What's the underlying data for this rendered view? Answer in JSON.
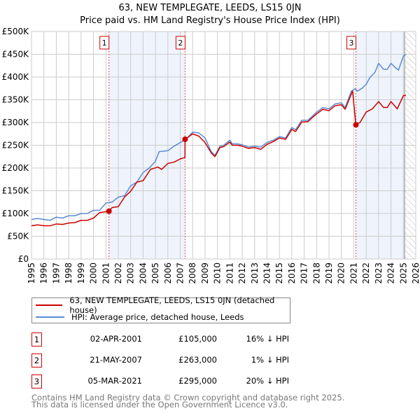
{
  "title": "63, NEW TEMPLEGATE, LEEDS, LS15 0JN",
  "subtitle": "Price paid vs. HM Land Registry's House Price Index (HPI)",
  "legend": {
    "property": "63, NEW TEMPLEGATE, LEEDS, LS15 0JN (detached house)",
    "hpi": "HPI: Average price, detached house, Leeds"
  },
  "colors": {
    "property": "#cc0000",
    "hpi": "#5b8bd0",
    "shade": "#eef3fc"
  },
  "transactions": [
    {
      "n": "1",
      "date": "02-APR-2001",
      "price": "£105,000",
      "hpi": "16% ↓ HPI"
    },
    {
      "n": "2",
      "date": "21-MAY-2007",
      "price": "£263,000",
      "hpi": "1% ↓ HPI"
    },
    {
      "n": "3",
      "date": "05-MAR-2021",
      "price": "£295,000",
      "hpi": "20% ↓ HPI"
    }
  ],
  "footer": [
    "Contains HM Land Registry data © Crown copyright and database right 2025.",
    "This data is licensed under the Open Government Licence v3.0."
  ],
  "chart_data": {
    "type": "line",
    "xlim": [
      1995,
      2026
    ],
    "ylim": [
      0,
      500000
    ],
    "xticks": [
      "1995",
      "1996",
      "1997",
      "1998",
      "1999",
      "2000",
      "2001",
      "2002",
      "2003",
      "2004",
      "2005",
      "2006",
      "2007",
      "2008",
      "2009",
      "2010",
      "2011",
      "2012",
      "2013",
      "2014",
      "2015",
      "2016",
      "2017",
      "2018",
      "2019",
      "2020",
      "2021",
      "2022",
      "2023",
      "2024",
      "2025",
      "2026"
    ],
    "yticks": [
      {
        "v": 0,
        "l": "£0"
      },
      {
        "v": 50000,
        "l": "£50K"
      },
      {
        "v": 100000,
        "l": "£100K"
      },
      {
        "v": 150000,
        "l": "£150K"
      },
      {
        "v": 200000,
        "l": "£200K"
      },
      {
        "v": 250000,
        "l": "£250K"
      },
      {
        "v": 300000,
        "l": "£300K"
      },
      {
        "v": 350000,
        "l": "£350K"
      },
      {
        "v": 400000,
        "l": "£400K"
      },
      {
        "v": 450000,
        "l": "£450K"
      },
      {
        "v": 500000,
        "l": "£500K"
      }
    ],
    "grid": true,
    "forecast_from": 2025.1,
    "shaded_ranges": [
      [
        2001.25,
        2007.39
      ],
      [
        2021.17,
        2025.1
      ]
    ],
    "sales": [
      {
        "label": "1",
        "x": 2001.25,
        "y": 105000
      },
      {
        "label": "2",
        "x": 2007.39,
        "y": 263000
      },
      {
        "label": "3",
        "x": 2021.17,
        "y": 295000
      }
    ],
    "series": [
      {
        "name": "HPI: Average price, detached house, Leeds",
        "key": "hpi",
        "points": [
          [
            1995,
            87
          ],
          [
            1995.5,
            89
          ],
          [
            1996,
            87
          ],
          [
            1996.5,
            85
          ],
          [
            1997,
            92
          ],
          [
            1997.5,
            90
          ],
          [
            1998,
            95
          ],
          [
            1998.5,
            95
          ],
          [
            1999,
            100
          ],
          [
            1999.5,
            100
          ],
          [
            2000,
            107
          ],
          [
            2000.5,
            107
          ],
          [
            2001,
            123
          ],
          [
            2001.5,
            125
          ],
          [
            2002,
            136
          ],
          [
            2002.5,
            139
          ],
          [
            2003,
            161
          ],
          [
            2003.5,
            169
          ],
          [
            2004,
            190
          ],
          [
            2004.5,
            200
          ],
          [
            2005,
            215
          ],
          [
            2005.3,
            236
          ],
          [
            2006,
            238
          ],
          [
            2006.5,
            248
          ],
          [
            2007,
            256
          ],
          [
            2007.5,
            264
          ],
          [
            2008,
            279
          ],
          [
            2008.5,
            277
          ],
          [
            2009,
            266
          ],
          [
            2009.5,
            236
          ],
          [
            2009.8,
            228
          ],
          [
            2010.2,
            248
          ],
          [
            2010.5,
            250
          ],
          [
            2011,
            261
          ],
          [
            2011.2,
            253
          ],
          [
            2011.6,
            253
          ],
          [
            2012,
            251
          ],
          [
            2012.5,
            246
          ],
          [
            2013,
            248
          ],
          [
            2013.5,
            246
          ],
          [
            2014,
            256
          ],
          [
            2014.5,
            261
          ],
          [
            2015,
            269
          ],
          [
            2015.5,
            266
          ],
          [
            2016,
            289
          ],
          [
            2016.3,
            284
          ],
          [
            2016.8,
            305
          ],
          [
            2017.3,
            305
          ],
          [
            2017.7,
            315
          ],
          [
            2018,
            323
          ],
          [
            2018.5,
            333
          ],
          [
            2019,
            330
          ],
          [
            2019.5,
            341
          ],
          [
            2020,
            343
          ],
          [
            2020.3,
            333
          ],
          [
            2020.8,
            369
          ],
          [
            2021.1,
            374
          ],
          [
            2021.3,
            369
          ],
          [
            2021.7,
            376
          ],
          [
            2022,
            384
          ],
          [
            2022.3,
            399
          ],
          [
            2022.7,
            410
          ],
          [
            2023,
            430
          ],
          [
            2023.4,
            417
          ],
          [
            2023.7,
            417
          ],
          [
            2024,
            430
          ],
          [
            2024.3,
            422
          ],
          [
            2024.6,
            415
          ],
          [
            2025,
            446
          ],
          [
            2025.2,
            450
          ]
        ]
      },
      {
        "name": "63, NEW TEMPLEGATE, LEEDS, LS15 0JN (detached house)",
        "key": "property",
        "points": [
          [
            1995,
            73
          ],
          [
            1995.5,
            75
          ],
          [
            1996,
            73
          ],
          [
            1996.5,
            73
          ],
          [
            1997,
            77
          ],
          [
            1997.5,
            76
          ],
          [
            1998,
            79
          ],
          [
            1998.5,
            80
          ],
          [
            1999,
            85
          ],
          [
            1999.5,
            85
          ],
          [
            2000,
            90
          ],
          [
            2000.5,
            102
          ],
          [
            2001.25,
            105
          ],
          [
            2001.5,
            113
          ],
          [
            2002,
            115
          ],
          [
            2002.5,
            136
          ],
          [
            2003,
            149
          ],
          [
            2003.5,
            169
          ],
          [
            2004,
            172
          ],
          [
            2004.6,
            197
          ],
          [
            2005.2,
            202
          ],
          [
            2005.5,
            197
          ],
          [
            2006,
            210
          ],
          [
            2006.5,
            213
          ],
          [
            2007,
            220
          ],
          [
            2007.38,
            223
          ],
          [
            2007.39,
            263
          ],
          [
            2008,
            275
          ],
          [
            2008.5,
            270
          ],
          [
            2009,
            256
          ],
          [
            2009.5,
            233
          ],
          [
            2009.8,
            225
          ],
          [
            2010.2,
            245
          ],
          [
            2010.5,
            247
          ],
          [
            2011,
            257
          ],
          [
            2011.2,
            250
          ],
          [
            2011.6,
            250
          ],
          [
            2012,
            248
          ],
          [
            2012.5,
            243
          ],
          [
            2013,
            245
          ],
          [
            2013.5,
            241
          ],
          [
            2014,
            252
          ],
          [
            2014.5,
            258
          ],
          [
            2015,
            266
          ],
          [
            2015.5,
            263
          ],
          [
            2016,
            285
          ],
          [
            2016.3,
            280
          ],
          [
            2016.8,
            301
          ],
          [
            2017.3,
            302
          ],
          [
            2017.7,
            312
          ],
          [
            2018,
            319
          ],
          [
            2018.5,
            329
          ],
          [
            2019,
            326
          ],
          [
            2019.5,
            337
          ],
          [
            2020,
            339
          ],
          [
            2020.3,
            329
          ],
          [
            2020.9,
            369
          ],
          [
            2021.17,
            295
          ],
          [
            2021.5,
            300
          ],
          [
            2022,
            323
          ],
          [
            2022.5,
            330
          ],
          [
            2023,
            346
          ],
          [
            2023.4,
            333
          ],
          [
            2023.7,
            333
          ],
          [
            2024,
            346
          ],
          [
            2024.5,
            330
          ],
          [
            2025,
            359
          ],
          [
            2025.2,
            360
          ]
        ]
      }
    ]
  }
}
